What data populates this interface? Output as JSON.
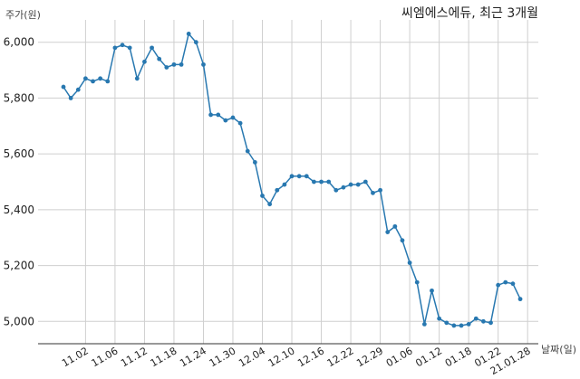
{
  "chart_data": {
    "type": "line",
    "title": "씨엠에스에듀, 최근 3개월",
    "xlabel": "날짜(일)",
    "ylabel": "주가(원)",
    "ylim": [
      4920,
      6080
    ],
    "yticks": [
      5000,
      5200,
      5400,
      5600,
      5800,
      6000
    ],
    "ytick_labels": [
      "5,000",
      "5,200",
      "5,400",
      "5,600",
      "5,800",
      "6,000"
    ],
    "xtick_labels": [
      "11.02",
      "11.06",
      "11.12",
      "11.18",
      "11.24",
      "11.30",
      "12.04",
      "12.10",
      "12.16",
      "12.22",
      "12.29",
      "01.06",
      "01.12",
      "01.18",
      "01.22",
      "21.01.28"
    ],
    "xtick_index": [
      3,
      7,
      11,
      15,
      19,
      23,
      27,
      31,
      35,
      39,
      43,
      47,
      51,
      55,
      59,
      63
    ],
    "grid": true,
    "color": "#2878b0",
    "series": [
      {
        "values": [
          5840,
          5800,
          5830,
          5870,
          5860,
          5870,
          5860,
          5980,
          5990,
          5980,
          5870,
          5930,
          5980,
          5940,
          5910,
          5920,
          5920,
          6030,
          6000,
          5920,
          5740,
          5740,
          5720,
          5730,
          5710,
          5610,
          5570,
          5450,
          5420,
          5470,
          5490,
          5520,
          5520,
          5520,
          5500,
          5500,
          5500,
          5470,
          5480,
          5490,
          5490,
          5500,
          5460,
          5470,
          5320,
          5340,
          5290,
          5210,
          5140,
          4990,
          5110,
          5010,
          4995,
          4985,
          4985,
          4990,
          5010,
          5000,
          4995,
          5130,
          5140,
          5135,
          5080
        ]
      }
    ]
  }
}
